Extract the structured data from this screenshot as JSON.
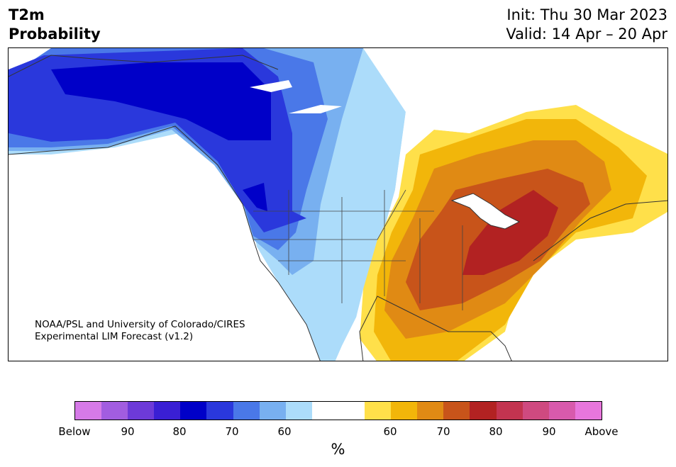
{
  "header": {
    "variable": "T2m",
    "subtitle": "Probability",
    "init": "Init: Thu 30 Mar 2023",
    "valid": "Valid: 14 Apr – 20 Apr"
  },
  "credit": {
    "line1": "NOAA/PSL and University of Colorado/CIRES",
    "line2": "Experimental LIM Forecast (v1.2)"
  },
  "colorbar": {
    "unit": "%",
    "colors": {
      "below_extreme": "#d67ae8",
      "below_90": "#a25de0",
      "below_85": "#6d3ad8",
      "below_80": "#3a1fd4",
      "below_75": "#0000c8",
      "below_70": "#2a38dc",
      "below_65": "#4a78e8",
      "below_60": "#78b0f0",
      "below_55": "#acdcfa",
      "neutral": "#ffffff",
      "above_55": "#ffe04a",
      "above_60": "#f2b60a",
      "above_65": "#e08a14",
      "above_70": "#c8541a",
      "above_75": "#b22222",
      "above_80": "#c33450",
      "above_85": "#cf4a80",
      "above_90": "#d85aac",
      "above_extreme": "#e876dc"
    },
    "tick_labels": [
      "Below",
      "90",
      "80",
      "70",
      "60",
      "60",
      "70",
      "80",
      "90",
      "Above"
    ]
  }
}
